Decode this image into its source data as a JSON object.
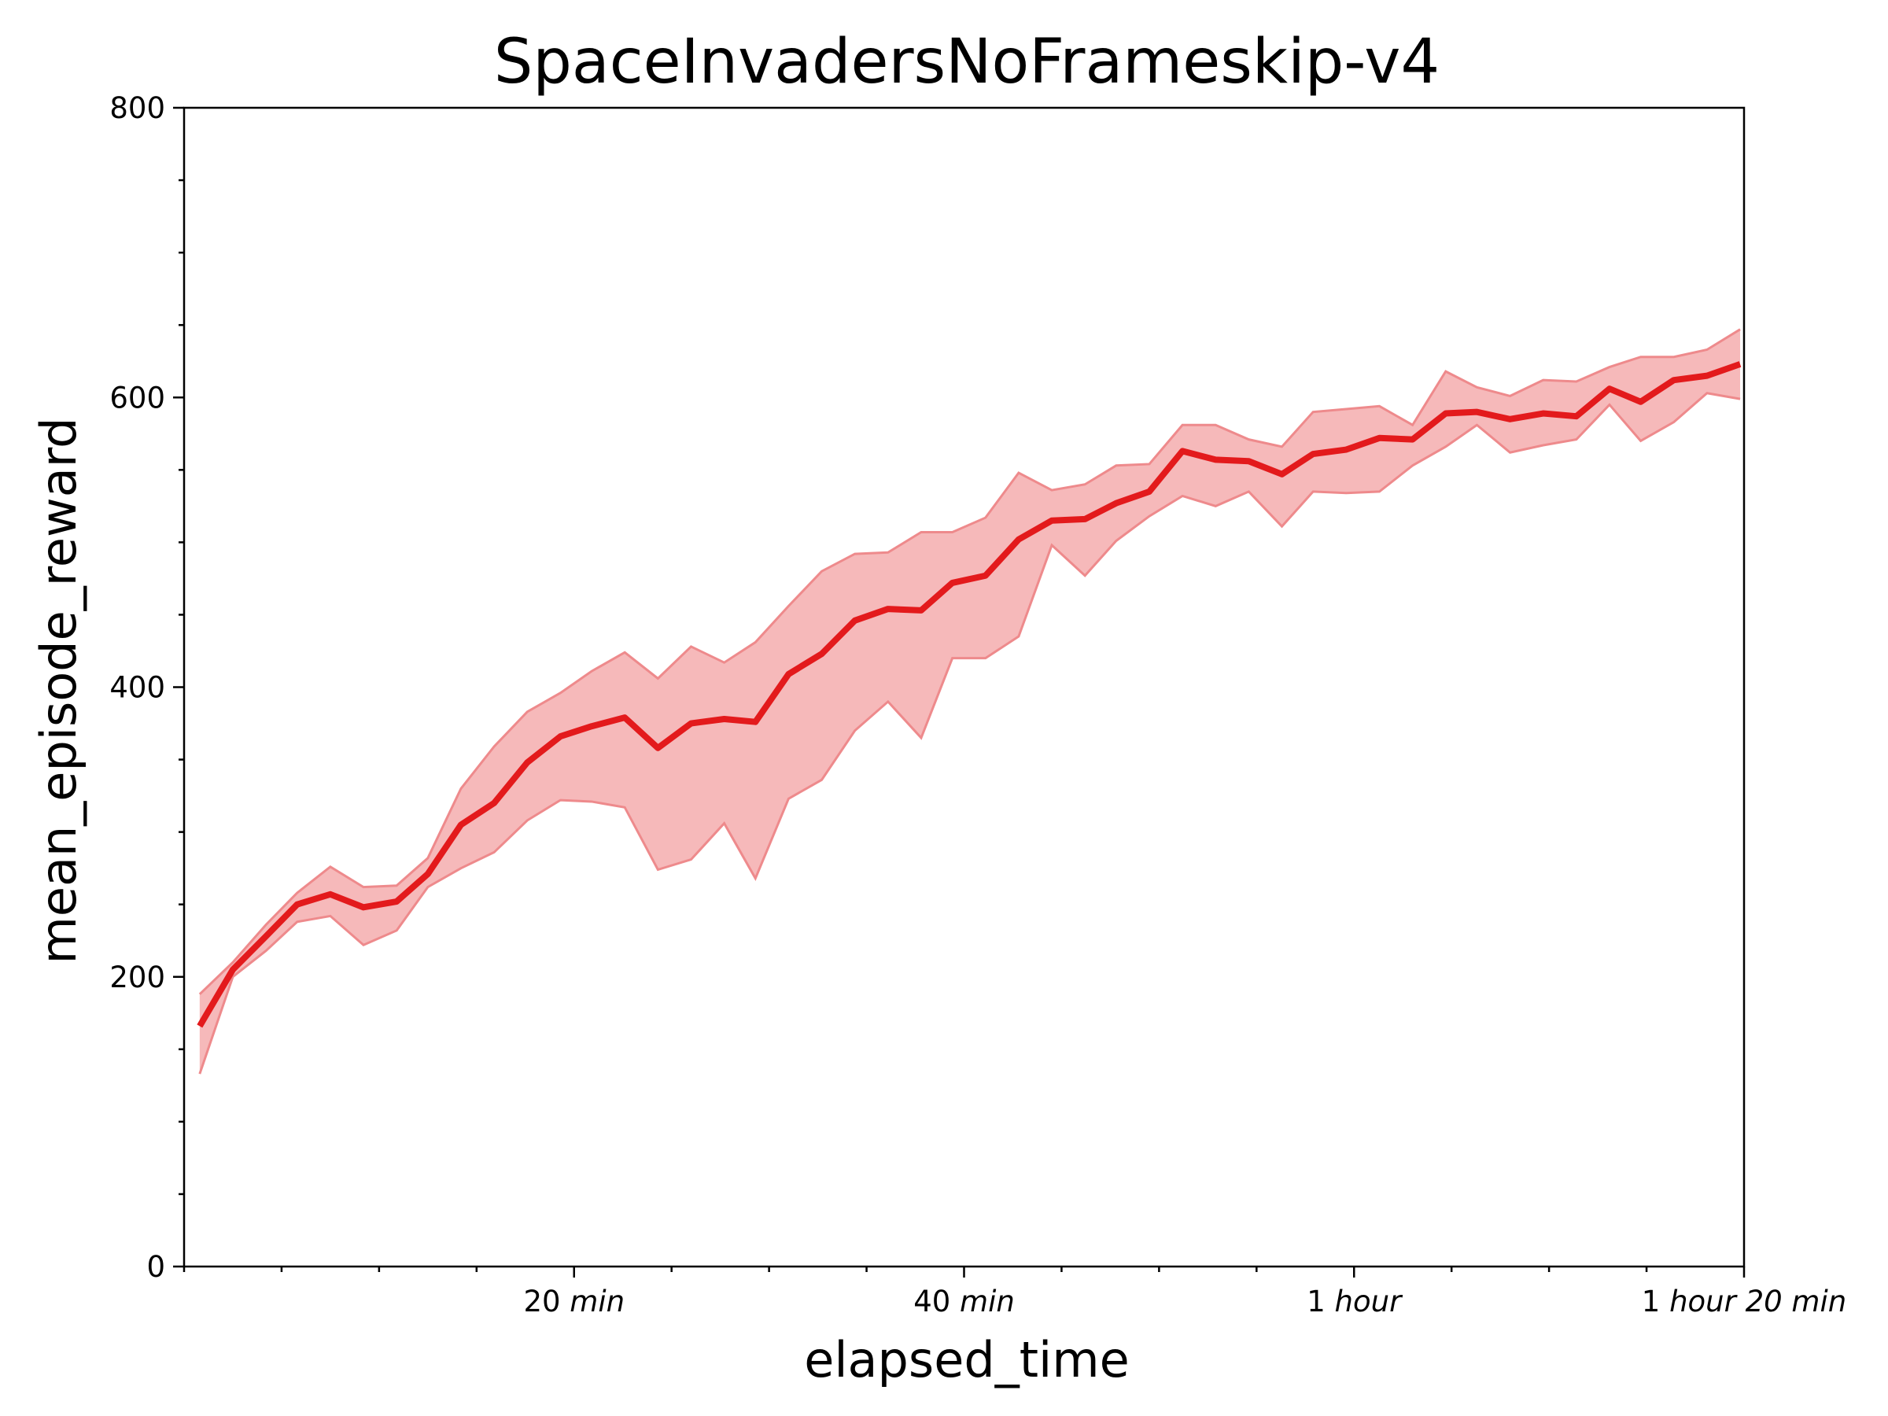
{
  "chart_data": {
    "type": "line",
    "title": "SpaceInvadersNoFrameskip-v4",
    "xlabel": "elapsed_time",
    "ylabel": "mean_episode_reward",
    "x_unit": "minutes",
    "xlim": [
      0,
      80
    ],
    "ylim": [
      0,
      800
    ],
    "yticks": [
      0,
      200,
      400,
      600,
      800
    ],
    "xticks": [
      {
        "value": 20,
        "num": "20",
        "unit": "min"
      },
      {
        "value": 40,
        "num": "40",
        "unit": "min"
      },
      {
        "value": 60,
        "num": "1",
        "unit": "hour"
      },
      {
        "value": 80,
        "num": "1",
        "unit": "hour 20 min"
      }
    ],
    "grid": false,
    "colors": {
      "line": "#e31a1c",
      "band": "#f4a7a9",
      "band_edge": "#ee8a8c"
    },
    "series": [
      {
        "x": [
          0.8,
          2.5,
          4.2,
          5.8,
          7.5,
          9.2,
          10.9,
          12.5,
          14.2,
          15.9,
          17.6,
          19.3,
          20.9,
          22.6,
          24.3,
          26.0,
          27.7,
          29.3,
          31.0,
          32.7,
          34.4,
          36.1,
          37.8,
          39.4,
          41.1,
          42.8,
          44.5,
          46.2,
          47.8,
          49.5,
          51.2,
          52.9,
          54.6,
          56.3,
          57.9,
          59.6,
          61.3,
          63.0,
          64.7,
          66.3,
          68.0,
          69.7,
          71.4,
          73.1,
          74.7,
          76.4,
          78.1,
          79.8
        ],
        "y": [
          166,
          205,
          228,
          250,
          257,
          248,
          252,
          271,
          305,
          320,
          348,
          366,
          373,
          379,
          358,
          375,
          378,
          376,
          409,
          423,
          446,
          454,
          453,
          472,
          477,
          502,
          515,
          516,
          527,
          535,
          563,
          557,
          556,
          547,
          561,
          564,
          572,
          571,
          589,
          590,
          585,
          589,
          587,
          606,
          597,
          612,
          615,
          623
        ],
        "lower": [
          133,
          200,
          218,
          238,
          242,
          222,
          232,
          262,
          275,
          286,
          308,
          322,
          321,
          317,
          274,
          281,
          306,
          268,
          323,
          336,
          370,
          390,
          365,
          420,
          420,
          435,
          498,
          477,
          501,
          518,
          532,
          525,
          535,
          511,
          535,
          534,
          535,
          553,
          566,
          581,
          562,
          567,
          571,
          595,
          570,
          583,
          603,
          599
        ],
        "upper": [
          188,
          210,
          236,
          258,
          276,
          262,
          263,
          282,
          330,
          359,
          383,
          396,
          411,
          424,
          406,
          428,
          417,
          431,
          456,
          480,
          492,
          493,
          507,
          507,
          517,
          548,
          536,
          540,
          553,
          554,
          581,
          581,
          571,
          566,
          590,
          592,
          594,
          581,
          618,
          607,
          601,
          612,
          611,
          621,
          628,
          628,
          633,
          647
        ]
      }
    ]
  }
}
